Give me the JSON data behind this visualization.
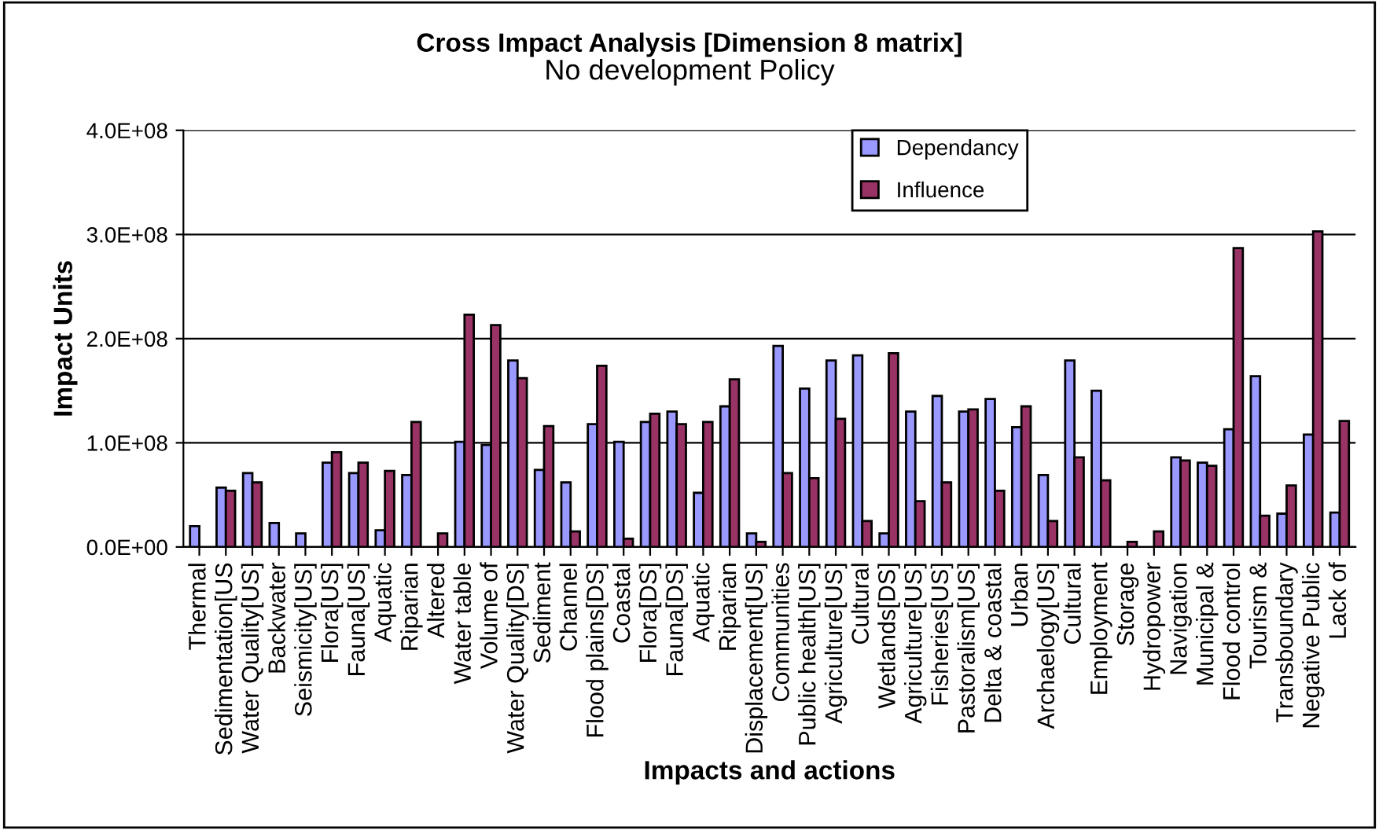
{
  "chart_data": {
    "type": "bar",
    "title": "Cross Impact Analysis [Dimension 8 matrix]",
    "subtitle": "No development Policy",
    "xlabel": "Impacts and actions",
    "ylabel": "Impact Units",
    "categories": [
      "Thermal",
      "Sedimentation[US",
      "Water Quality[US]",
      "Backwater",
      "Seismicity[US]",
      "Flora[US]",
      "Fauna[US]",
      "Aquatic",
      "Riparian",
      "Altered",
      "Water table",
      "Volume of",
      "Water Quality[DS]",
      "Sediment",
      "Channel",
      "Flood plains[DS]",
      "Coastal",
      "Flora[DS]",
      "Fauna[DS]",
      "Aquatic",
      "Riparian",
      "Displacement[US]",
      "Communities",
      "Public health[US]",
      "Agriculture[US]",
      "Cultural",
      "Wetlands[DS]",
      "Agriculture[US]",
      "Fisheries[US]",
      "Pastoralism[US]",
      "Delta & coastal",
      "Urban",
      "Archaelogy[US]",
      "Cultural",
      "Employment",
      "Storage",
      "Hydropower",
      "Navigation",
      "Municipal &",
      "Flood control",
      "Tourism &",
      "Transboundary",
      "Negative Public",
      "Lack of"
    ],
    "series": [
      {
        "name": "Dependancy",
        "color": "#9999ff",
        "values": [
          20000000,
          57000000,
          71000000,
          23000000,
          13000000,
          81000000,
          71000000,
          16000000,
          69000000,
          null,
          101000000,
          98000000,
          179000000,
          74000000,
          62000000,
          118000000,
          101000000,
          120000000,
          130000000,
          52000000,
          135000000,
          13000000,
          193000000,
          152000000,
          179000000,
          184000000,
          13000000,
          130000000,
          145000000,
          130000000,
          142000000,
          115000000,
          69000000,
          179000000,
          150000000,
          null,
          null,
          86000000,
          81000000,
          113000000,
          164000000,
          32000000,
          108000000,
          33000000
        ]
      },
      {
        "name": "Influence",
        "color": "#993366",
        "values": [
          null,
          54000000,
          62000000,
          null,
          null,
          91000000,
          81000000,
          73000000,
          120000000,
          13000000,
          223000000,
          213000000,
          162000000,
          116000000,
          15000000,
          174000000,
          8000000,
          128000000,
          118000000,
          120000000,
          161000000,
          5000000,
          71000000,
          66000000,
          123000000,
          25000000,
          186000000,
          44000000,
          62000000,
          132000000,
          54000000,
          135000000,
          25000000,
          86000000,
          64000000,
          5000000,
          15000000,
          83000000,
          78000000,
          287000000,
          30000000,
          59000000,
          303000000,
          121000000
        ]
      }
    ],
    "ylim": [
      0,
      400000000
    ],
    "yticks": [
      {
        "value": 0,
        "label": "0.0E+00"
      },
      {
        "value": 100000000,
        "label": "1.0E+08"
      },
      {
        "value": 200000000,
        "label": "2.0E+08"
      },
      {
        "value": 300000000,
        "label": "3.0E+08"
      },
      {
        "value": 400000000,
        "label": "4.0E+08"
      }
    ],
    "grid": "y",
    "legend": "top right"
  }
}
